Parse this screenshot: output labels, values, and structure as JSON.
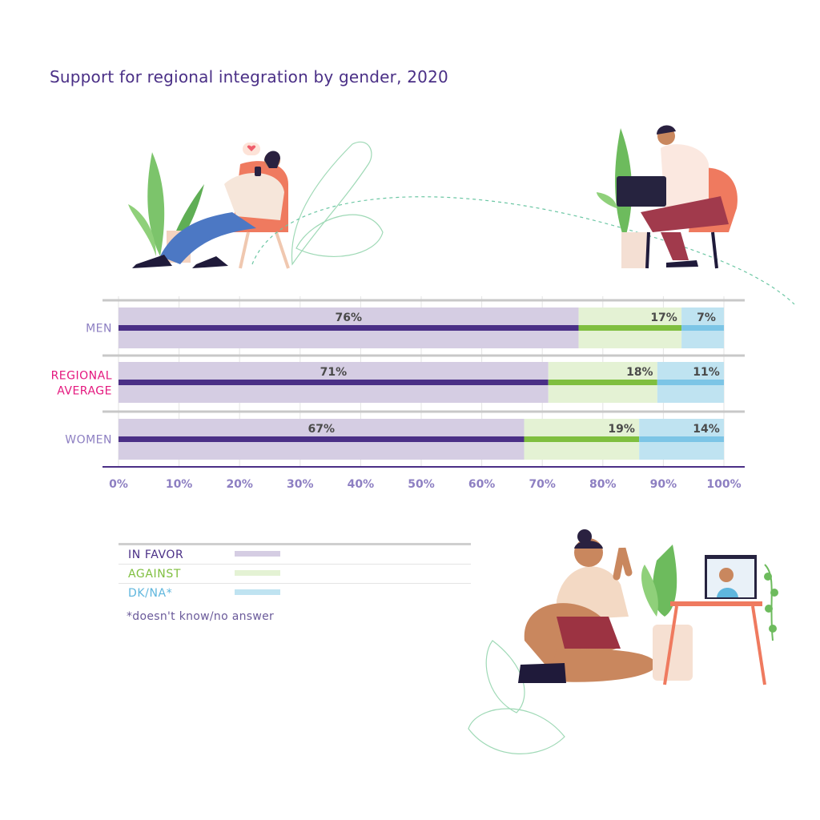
{
  "title": "Support for regional integration by gender, 2020",
  "chart_data": {
    "type": "bar",
    "orientation": "horizontal",
    "stacked": true,
    "categories": [
      "MEN",
      "REGIONAL\nAVERAGE",
      "WOMEN"
    ],
    "category_colors": [
      "#8d7fc2",
      "#e4177e",
      "#8d7fc2"
    ],
    "series": [
      {
        "name": "IN FAVOR",
        "values": [
          76,
          71,
          67
        ],
        "fill": "#d5cde3",
        "stroke": "#4a2f86"
      },
      {
        "name": "AGAINST",
        "values": [
          17,
          18,
          19
        ],
        "fill": "#e4f2d4",
        "stroke": "#7fbf3f"
      },
      {
        "name": "DK/NA*",
        "values": [
          7,
          11,
          14
        ],
        "fill": "#bfe3f1",
        "stroke": "#7cc5e6"
      }
    ],
    "data_labels": [
      [
        "76%",
        "71%",
        "67%"
      ],
      [
        "17%",
        "18%",
        "19%"
      ],
      [
        "7%",
        "11%",
        "14%"
      ]
    ],
    "x_ticks": [
      "0%",
      "10%",
      "20%",
      "30%",
      "40%",
      "50%",
      "60%",
      "70%",
      "80%",
      "90%",
      "100%"
    ],
    "xlim": [
      0,
      100
    ],
    "grid": true
  },
  "legend": {
    "items": [
      {
        "label": "IN FAVOR",
        "color": "#d5cde3",
        "text_color": "#4a2f86"
      },
      {
        "label": "AGAINST",
        "color": "#e4f2d4",
        "text_color": "#7fbf3f"
      },
      {
        "label": "DK/NA*",
        "color": "#bfe3f1",
        "text_color": "#5fb6dd"
      }
    ],
    "note": "*doesn't know/no answer"
  }
}
